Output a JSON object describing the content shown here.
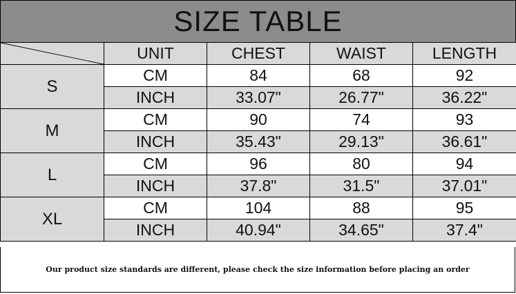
{
  "title": "SIZE TABLE",
  "headers": [
    "UNIT",
    "CHEST",
    "WAIST",
    "LENGTH"
  ],
  "rows": [
    {
      "size": "S",
      "cm": {
        "unit": "CM",
        "chest": "84",
        "waist": "68",
        "length": "92"
      },
      "inch": {
        "unit": "INCH",
        "chest": "33.07\"",
        "waist": "26.77\"",
        "length": "36.22\""
      }
    },
    {
      "size": "M",
      "cm": {
        "unit": "CM",
        "chest": "90",
        "waist": "74",
        "length": "93"
      },
      "inch": {
        "unit": "INCH",
        "chest": "35.43\"",
        "waist": "29.13\"",
        "length": "36.61\""
      }
    },
    {
      "size": "L",
      "cm": {
        "unit": "CM",
        "chest": "96",
        "waist": "80",
        "length": "94"
      },
      "inch": {
        "unit": "INCH",
        "chest": "37.8\"",
        "waist": "31.5\"",
        "length": "37.01\""
      }
    },
    {
      "size": "XL",
      "cm": {
        "unit": "CM",
        "chest": "104",
        "waist": "88",
        "length": "95"
      },
      "inch": {
        "unit": "INCH",
        "chest": "40.94\"",
        "waist": "34.65\"",
        "length": "37.4\""
      }
    }
  ],
  "footer": "Our product size standards are different, please check the size information before placing an order",
  "colors": {
    "title_bg": "#8c8c8c",
    "shaded": "#d9d9d9",
    "border": "#000000"
  }
}
